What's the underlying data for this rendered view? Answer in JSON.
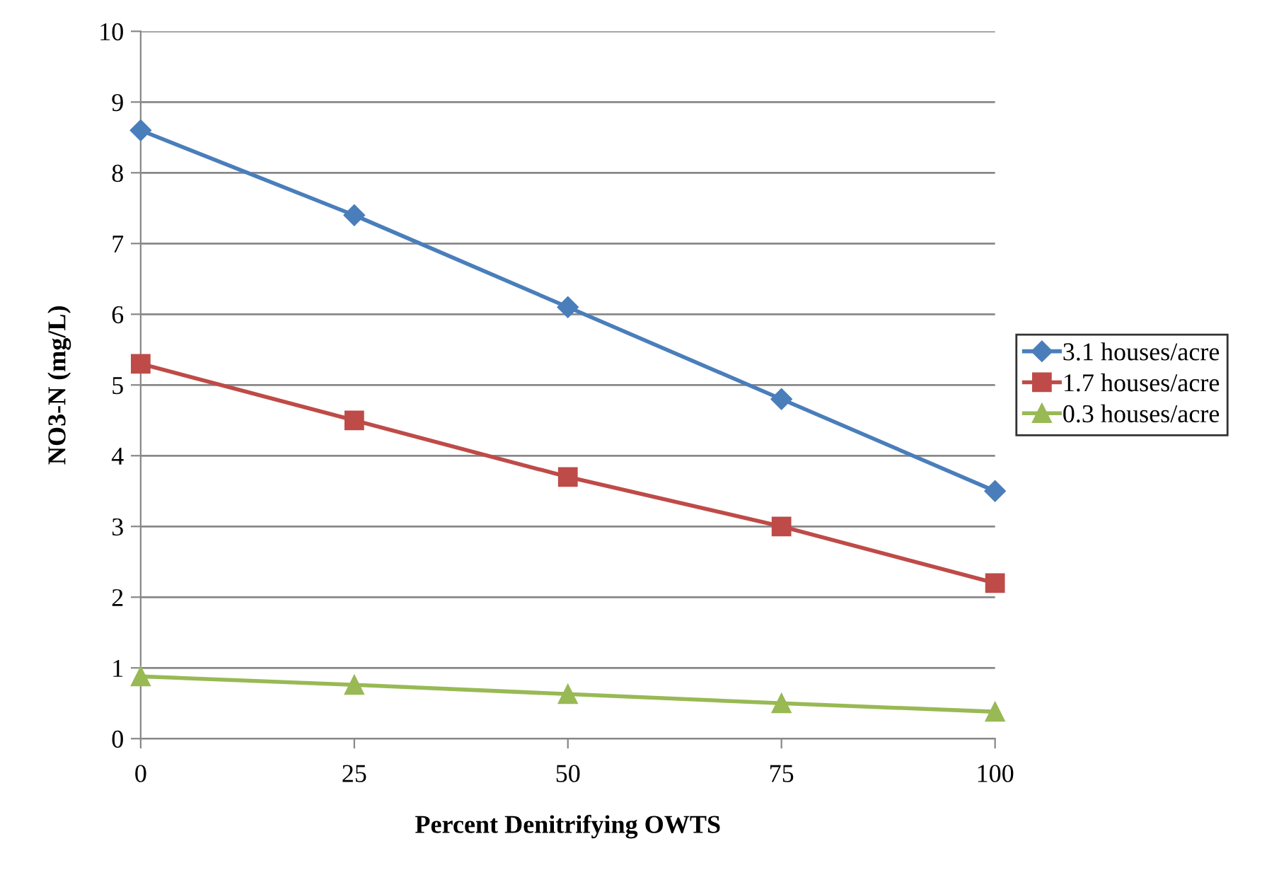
{
  "chart_data": {
    "type": "line",
    "xlabel": "Percent Denitrifying OWTS",
    "ylabel": "NO3-N (mg/L)",
    "x": [
      0,
      25,
      50,
      75,
      100
    ],
    "series": [
      {
        "name": "3.1 houses/acre",
        "color": "#4a7ebb",
        "marker": "diamond",
        "values": [
          8.6,
          7.4,
          6.1,
          4.8,
          3.5
        ]
      },
      {
        "name": "1.7 houses/acre",
        "color": "#be4b48",
        "marker": "square",
        "values": [
          5.3,
          4.5,
          3.7,
          3.0,
          2.2
        ]
      },
      {
        "name": "0.3 houses/acre",
        "color": "#98b954",
        "marker": "triangle",
        "values": [
          0.88,
          0.76,
          0.63,
          0.5,
          0.38
        ]
      }
    ],
    "xlim": [
      0,
      100
    ],
    "xticks": [
      0,
      25,
      50,
      75,
      100
    ],
    "ylim": [
      0,
      10
    ],
    "yticks": [
      0,
      1,
      2,
      3,
      4,
      5,
      6,
      7,
      8,
      9,
      10
    ],
    "grid": "y",
    "legend": "right",
    "line_style": "solid"
  }
}
